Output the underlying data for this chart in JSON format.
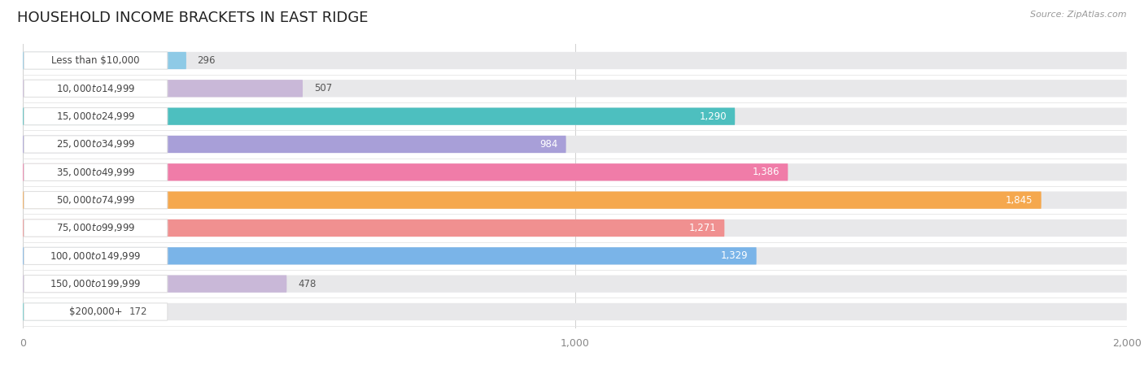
{
  "title": "HOUSEHOLD INCOME BRACKETS IN EAST RIDGE",
  "source": "Source: ZipAtlas.com",
  "categories": [
    "Less than $10,000",
    "$10,000 to $14,999",
    "$15,000 to $24,999",
    "$25,000 to $34,999",
    "$35,000 to $49,999",
    "$50,000 to $74,999",
    "$75,000 to $99,999",
    "$100,000 to $149,999",
    "$150,000 to $199,999",
    "$200,000+"
  ],
  "values": [
    296,
    507,
    1290,
    984,
    1386,
    1845,
    1271,
    1329,
    478,
    172
  ],
  "bar_colors": [
    "#8ecae6",
    "#c9b8d8",
    "#4dbfbf",
    "#a89fd8",
    "#f07ca8",
    "#f5a84e",
    "#f09090",
    "#7ab4e8",
    "#c9b8d8",
    "#6dcfcf"
  ],
  "bar_track_color": "#e8e8ea",
  "label_box_color": "#ffffff",
  "label_box_border": "#e0e0e0",
  "bg_color": "#ffffff",
  "xlim_max": 2000,
  "xticks": [
    0,
    1000,
    2000
  ],
  "title_fontsize": 13,
  "label_fontsize": 8.5,
  "value_fontsize": 8.5,
  "value_inside_threshold": 700
}
